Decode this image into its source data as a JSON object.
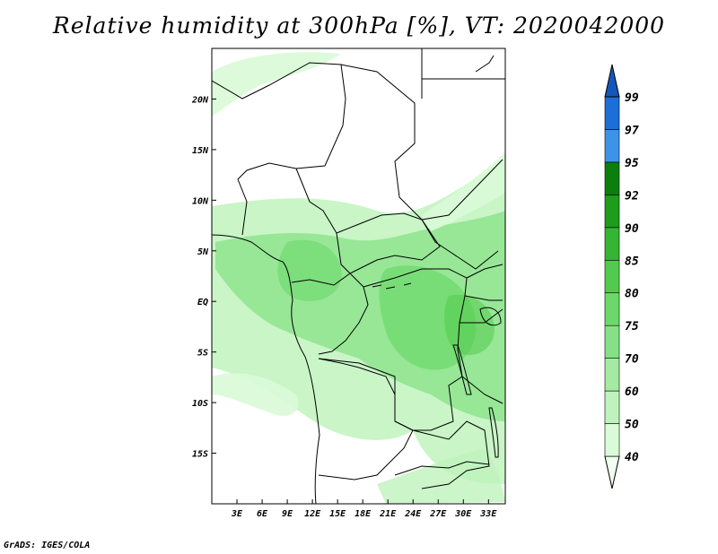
{
  "title": "Relative humidity at 300hPa [%], VT: 2020042000",
  "footer": "GrADS: IGES/COLA",
  "map": {
    "lon_range": [
      0,
      35
    ],
    "lat_range": [
      -20,
      25
    ],
    "lon_ticks": [
      "3E",
      "6E",
      "9E",
      "12E",
      "15E",
      "18E",
      "21E",
      "24E",
      "27E",
      "30E",
      "33E"
    ],
    "lon_values": [
      3,
      6,
      9,
      12,
      15,
      18,
      21,
      24,
      27,
      30,
      33
    ],
    "lat_ticks": [
      "20N",
      "15N",
      "10N",
      "5N",
      "EQ",
      "5S",
      "10S",
      "15S"
    ],
    "lat_values": [
      20,
      15,
      10,
      5,
      0,
      -5,
      -10,
      -15
    ]
  },
  "colorbar": {
    "levels": [
      "40",
      "50",
      "60",
      "70",
      "75",
      "80",
      "85",
      "90",
      "92",
      "95",
      "97",
      "99"
    ],
    "colors": [
      "#f0fff0",
      "#d9fbd7",
      "#bff3bd",
      "#a4eaa3",
      "#86e186",
      "#6cd86a",
      "#52ca4f",
      "#36b534",
      "#1e9c1c",
      "#0b7f0b",
      "#3d93e6",
      "#1c6fd6",
      "#1557b8"
    ]
  }
}
